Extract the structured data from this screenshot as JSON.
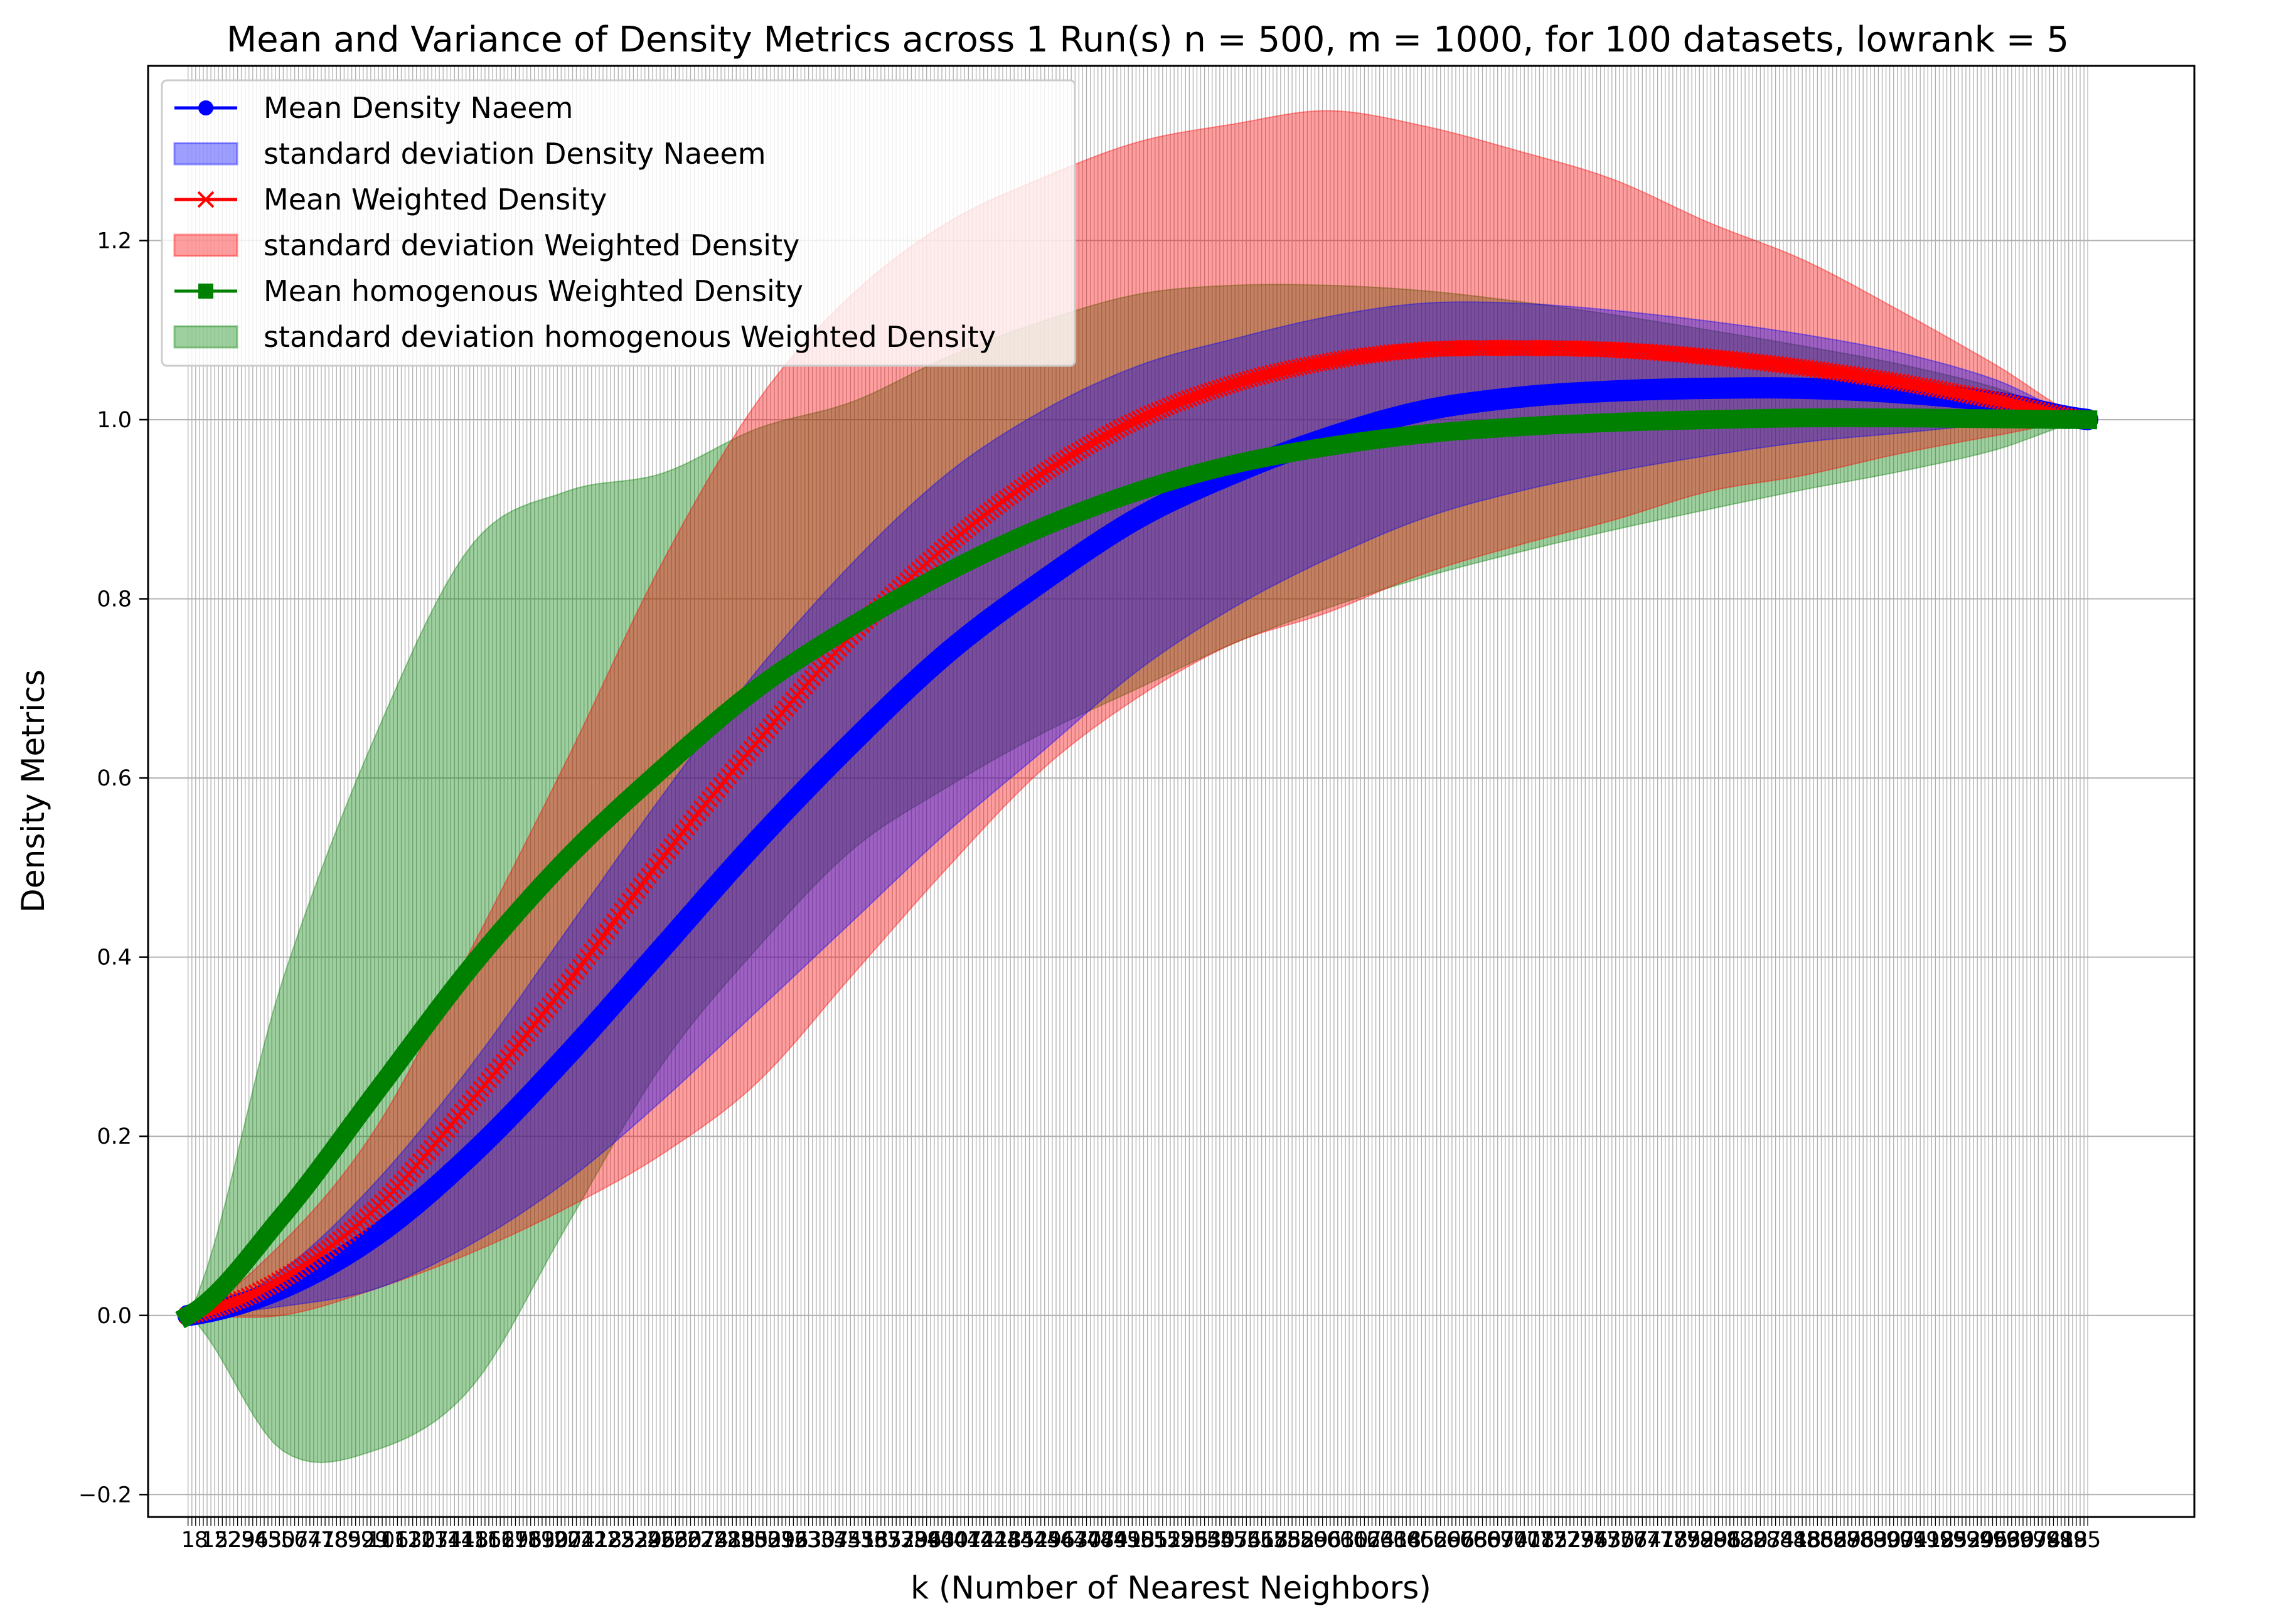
{
  "chart_data": {
    "type": "line",
    "title": "Mean and Variance of Density Metrics across 1 Run(s) n  = 500, m  = 1000, for 100 datasets, lowrank = 5",
    "xlabel": "k (Number of Nearest Neighbors)",
    "ylabel": "Density Metrics",
    "ylim": [
      -0.225,
      1.395
    ],
    "xlim": [
      -20,
      1055
    ],
    "x_range": [
      1,
      1000
    ],
    "y_ticks": [
      -0.2,
      0.0,
      0.2,
      0.4,
      0.6,
      0.8,
      1.0,
      1.2
    ],
    "y_tick_labels": [
      "−0.2",
      "0.0",
      "0.2",
      "0.4",
      "0.6",
      "0.8",
      "1.0",
      "1.2"
    ],
    "grid": true,
    "legend_position": "upper-left",
    "colors": {
      "naeem": "#0000ff",
      "weighted": "#ff0000",
      "homogenous": "#008000"
    },
    "series": [
      {
        "name": "Mean Density Naeem",
        "band_name": "standard deviation Density Naeem",
        "color": "#0000ff",
        "marker": "circle",
        "x": [
          1,
          50,
          100,
          150,
          200,
          250,
          300,
          350,
          400,
          450,
          500,
          550,
          600,
          650,
          700,
          750,
          800,
          850,
          900,
          950,
          1000
        ],
        "mean": [
          0.0,
          0.03,
          0.09,
          0.18,
          0.29,
          0.41,
          0.53,
          0.64,
          0.74,
          0.82,
          0.89,
          0.94,
          0.98,
          1.01,
          1.025,
          1.032,
          1.035,
          1.035,
          1.03,
          1.02,
          1.0
        ],
        "std": [
          0.0,
          0.02,
          0.06,
          0.1,
          0.14,
          0.17,
          0.19,
          0.2,
          0.2,
          0.19,
          0.17,
          0.15,
          0.135,
          0.12,
          0.105,
          0.09,
          0.075,
          0.06,
          0.045,
          0.025,
          0.0
        ]
      },
      {
        "name": "Mean Weighted Density",
        "band_name": "standard deviation Weighted Density",
        "color": "#ff0000",
        "marker": "x",
        "x": [
          1,
          50,
          100,
          150,
          200,
          250,
          300,
          350,
          400,
          450,
          500,
          550,
          600,
          650,
          700,
          750,
          800,
          850,
          900,
          950,
          1000
        ],
        "mean": [
          0.0,
          0.04,
          0.12,
          0.24,
          0.37,
          0.51,
          0.64,
          0.76,
          0.86,
          0.94,
          1.0,
          1.04,
          1.065,
          1.078,
          1.08,
          1.078,
          1.07,
          1.058,
          1.042,
          1.022,
          1.0
        ],
        "std": [
          0.0,
          0.04,
          0.09,
          0.17,
          0.25,
          0.33,
          0.38,
          0.38,
          0.36,
          0.33,
          0.31,
          0.29,
          0.28,
          0.25,
          0.22,
          0.19,
          0.15,
          0.12,
          0.08,
          0.04,
          0.0
        ]
      },
      {
        "name": "Mean homogenous Weighted Density",
        "band_name": "standard deviation homogenous Weighted Density",
        "color": "#008000",
        "marker": "square",
        "x": [
          1,
          50,
          100,
          150,
          200,
          250,
          300,
          350,
          400,
          450,
          500,
          550,
          600,
          650,
          700,
          750,
          800,
          850,
          900,
          950,
          1000
        ],
        "mean": [
          0.0,
          0.11,
          0.25,
          0.39,
          0.51,
          0.61,
          0.7,
          0.77,
          0.83,
          0.88,
          0.92,
          0.95,
          0.97,
          0.984,
          0.992,
          0.997,
          1.0,
          1.002,
          1.002,
          1.001,
          1.0
        ],
        "std": [
          0.0,
          0.26,
          0.4,
          0.47,
          0.41,
          0.33,
          0.29,
          0.25,
          0.24,
          0.23,
          0.22,
          0.2,
          0.18,
          0.16,
          0.14,
          0.12,
          0.1,
          0.08,
          0.06,
          0.035,
          0.0
        ]
      }
    ]
  }
}
